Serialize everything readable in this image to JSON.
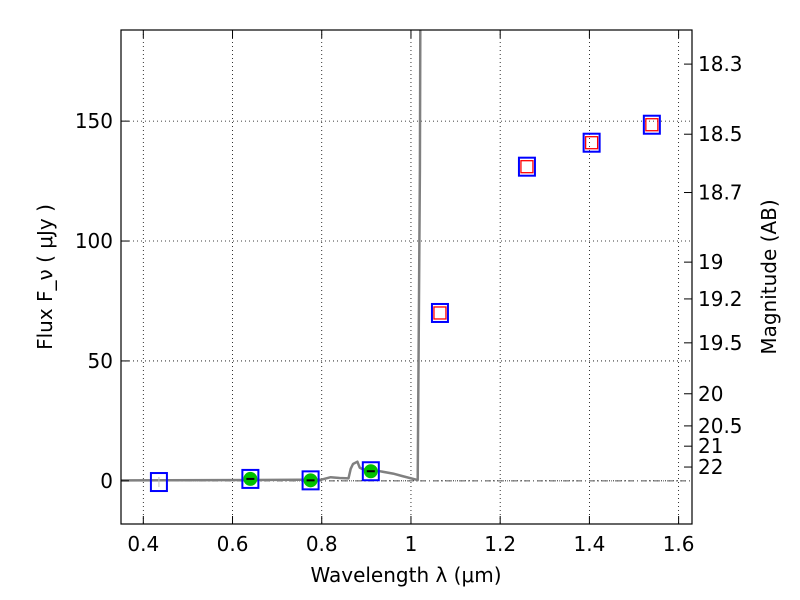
{
  "chart_data": {
    "type": "scatter",
    "title": "",
    "xlabel": "Wavelength  λ (μm)",
    "ylabel": "Flux  F_ν  ( μJy )",
    "y2label": "Magnitude (AB)",
    "xlim": [
      0.35,
      1.63
    ],
    "ylim": [
      -18,
      188
    ],
    "grid": true,
    "x_ticks": [
      {
        "value": 0.4,
        "label": "0.4"
      },
      {
        "value": 0.6,
        "label": "0.6"
      },
      {
        "value": 0.8,
        "label": "0.8"
      },
      {
        "value": 1.0,
        "label": "1"
      },
      {
        "value": 1.2,
        "label": "1.2"
      },
      {
        "value": 1.4,
        "label": "1.4"
      },
      {
        "value": 1.6,
        "label": "1.6"
      }
    ],
    "y_ticks": [
      {
        "value": 0,
        "label": "0"
      },
      {
        "value": 50,
        "label": "50"
      },
      {
        "value": 100,
        "label": "100"
      },
      {
        "value": 150,
        "label": "150"
      }
    ],
    "mag_ticks": [
      {
        "mag": 18.3,
        "label": "18.3"
      },
      {
        "mag": 18.5,
        "label": "18.5"
      },
      {
        "mag": 18.7,
        "label": "18.7"
      },
      {
        "mag": 19.0,
        "label": "19"
      },
      {
        "mag": 19.2,
        "label": "19.2"
      },
      {
        "mag": 19.5,
        "label": "19.5"
      },
      {
        "mag": 20.0,
        "label": "20"
      },
      {
        "mag": 20.5,
        "label": "20.5"
      },
      {
        "mag": 21.0,
        "label": "21"
      },
      {
        "mag": 22.0,
        "label": "22"
      }
    ],
    "series": [
      {
        "kind": "model-spectrum",
        "color": "#808080",
        "x": [
          0.35,
          0.55,
          0.7,
          0.8,
          0.82,
          0.84,
          0.86,
          0.865,
          0.87,
          0.88,
          0.885,
          0.89,
          0.9,
          0.93,
          0.96,
          0.98,
          1.015,
          1.02,
          1.021
        ],
        "y": [
          0.2,
          0.3,
          0.4,
          0.5,
          1.5,
          1.2,
          1.0,
          5.0,
          7.0,
          8.0,
          5.5,
          5.0,
          4.5,
          4.0,
          3.0,
          2.0,
          0.3,
          130,
          188
        ]
      },
      {
        "kind": "observed-blue-squares",
        "color": "#0000ff",
        "x": [
          0.435,
          0.64,
          0.775,
          0.91,
          1.065,
          1.26,
          1.405,
          1.54
        ],
        "y": [
          -0.5,
          0.8,
          0.2,
          4.0,
          70.0,
          131.0,
          141.0,
          148.5
        ]
      },
      {
        "kind": "model-red-squares",
        "color": "#ff0000",
        "x": [
          1.065,
          1.26,
          1.405,
          1.54
        ],
        "y": [
          70.0,
          131.0,
          141.0,
          148.5
        ]
      },
      {
        "kind": "detections-green",
        "color": "#00c000",
        "x": [
          0.64,
          0.775,
          0.91
        ],
        "y": [
          0.8,
          0.2,
          4.0
        ]
      }
    ]
  }
}
